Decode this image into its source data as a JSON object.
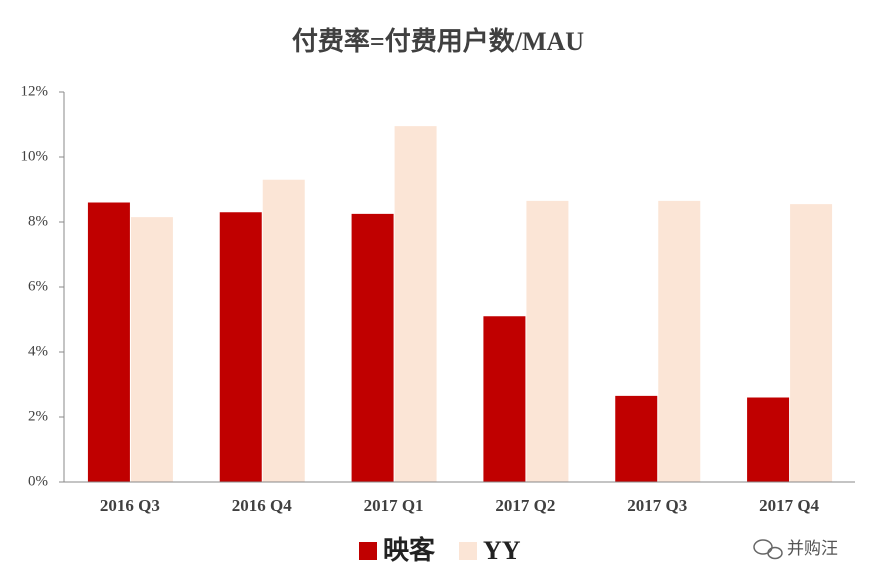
{
  "chart_data": {
    "type": "bar",
    "title": "付费率=付费用户数/MAU",
    "categories": [
      "2016 Q3",
      "2016 Q4",
      "2017 Q1",
      "2017 Q2",
      "2017 Q3",
      "2017 Q4"
    ],
    "series": [
      {
        "name": "映客",
        "color": "#c00000",
        "values": [
          8.6,
          8.3,
          8.25,
          5.1,
          2.65,
          2.6
        ]
      },
      {
        "name": "YY",
        "color": "#fbe5d6",
        "values": [
          8.15,
          9.3,
          10.95,
          8.65,
          8.65,
          8.55
        ]
      }
    ],
    "ylim": [
      0,
      12
    ],
    "yticks": [
      {
        "value": 0,
        "label": "0%"
      },
      {
        "value": 2,
        "label": "2%"
      },
      {
        "value": 4,
        "label": "4%"
      },
      {
        "value": 6,
        "label": "6%"
      },
      {
        "value": 8,
        "label": "8%"
      },
      {
        "value": 10,
        "label": "10%"
      },
      {
        "value": 12,
        "label": "12%"
      }
    ],
    "grid": false,
    "legend": "bottom",
    "watermark": "并购汪"
  }
}
